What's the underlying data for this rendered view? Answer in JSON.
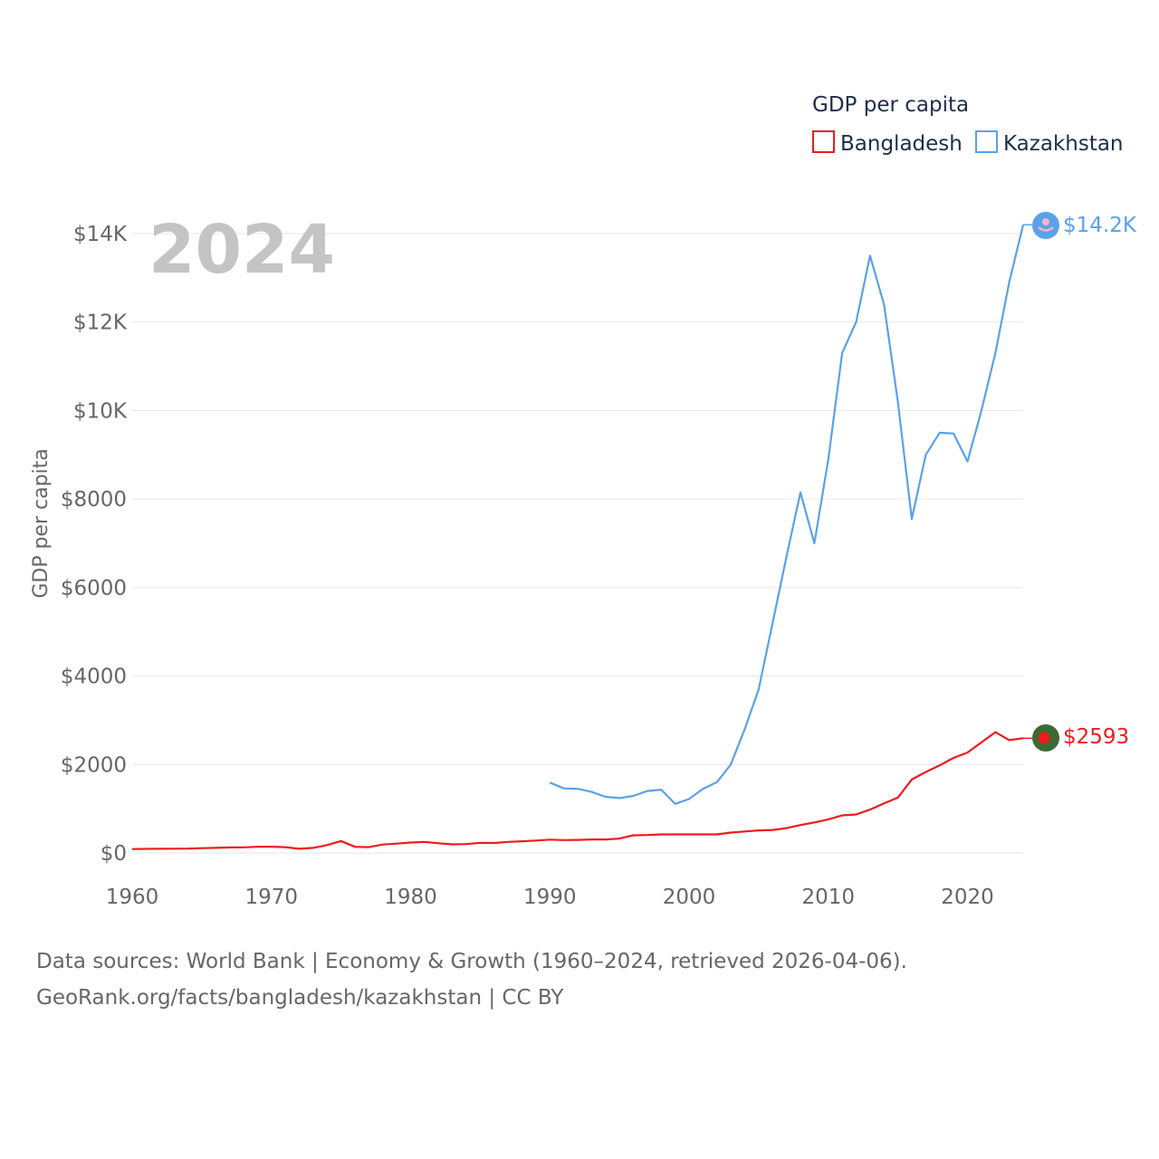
{
  "chart_data": {
    "type": "line",
    "title": "GDP per capita",
    "ylabel": "GDP per capita",
    "xlabel": "",
    "highlight_year": "2024",
    "xlim": [
      1960,
      2024
    ],
    "ylim": [
      0,
      14000
    ],
    "x_ticks": [
      1960,
      1970,
      1980,
      1990,
      2000,
      2010,
      2020
    ],
    "y_ticks": [
      0,
      2000,
      4000,
      6000,
      8000,
      10000,
      12000,
      14000
    ],
    "y_tick_labels": [
      "$0",
      "$2000",
      "$4000",
      "$6000",
      "$8000",
      "$10K",
      "$12K",
      "$14K"
    ],
    "grid": true,
    "legend": {
      "title": "GDP per capita",
      "position": "top-right"
    },
    "series": [
      {
        "name": "Bangladesh",
        "color": "#ee1c1c",
        "end_label": "$2593",
        "marker_icon": "bangladesh-flag-icon",
        "x": [
          1960,
          1961,
          1962,
          1963,
          1964,
          1965,
          1966,
          1967,
          1968,
          1969,
          1970,
          1971,
          1972,
          1973,
          1974,
          1975,
          1976,
          1977,
          1978,
          1979,
          1980,
          1981,
          1982,
          1983,
          1984,
          1985,
          1986,
          1987,
          1988,
          1989,
          1990,
          1991,
          1992,
          1993,
          1994,
          1995,
          1996,
          1997,
          1998,
          1999,
          2000,
          2001,
          2002,
          2003,
          2004,
          2005,
          2006,
          2007,
          2008,
          2009,
          2010,
          2011,
          2012,
          2013,
          2014,
          2015,
          2016,
          2017,
          2018,
          2019,
          2020,
          2021,
          2022,
          2023,
          2024
        ],
        "values": [
          89,
          92,
          94,
          97,
          99,
          109,
          115,
          124,
          126,
          140,
          141,
          130,
          95,
          115,
          178,
          270,
          140,
          130,
          190,
          210,
          235,
          250,
          220,
          195,
          200,
          230,
          225,
          250,
          265,
          280,
          300,
          290,
          295,
          305,
          305,
          325,
          400,
          405,
          420,
          420,
          420,
          420,
          420,
          460,
          485,
          510,
          520,
          560,
          630,
          690,
          760,
          850,
          870,
          980,
          1120,
          1250,
          1660,
          1830,
          1980,
          2150,
          2270,
          2500,
          2730,
          2550,
          2593
        ]
      },
      {
        "name": "Kazakhstan",
        "color": "#5aa2e8",
        "end_label": "$14.2K",
        "marker_icon": "kazakhstan-flag-icon",
        "x": [
          1990,
          1991,
          1992,
          1993,
          1994,
          1995,
          1996,
          1997,
          1998,
          1999,
          2000,
          2001,
          2002,
          2003,
          2004,
          2005,
          2006,
          2007,
          2008,
          2009,
          2010,
          2011,
          2012,
          2013,
          2014,
          2015,
          2016,
          2017,
          2018,
          2019,
          2020,
          2021,
          2022,
          2023,
          2024
        ],
        "values": [
          1590,
          1460,
          1450,
          1380,
          1270,
          1240,
          1290,
          1400,
          1430,
          1110,
          1220,
          1450,
          1600,
          2000,
          2800,
          3700,
          5200,
          6700,
          8150,
          7000,
          8900,
          11300,
          12000,
          13500,
          12400,
          10200,
          7550,
          9000,
          9500,
          9480,
          8850,
          10000,
          11300,
          12900,
          14200
        ]
      }
    ]
  },
  "footer": {
    "line1": "Data sources: World Bank | Economy & Growth (1960–2024, retrieved 2026-04-06).",
    "line2": "GeoRank.org/facts/bangladesh/kazakhstan | CC BY"
  }
}
